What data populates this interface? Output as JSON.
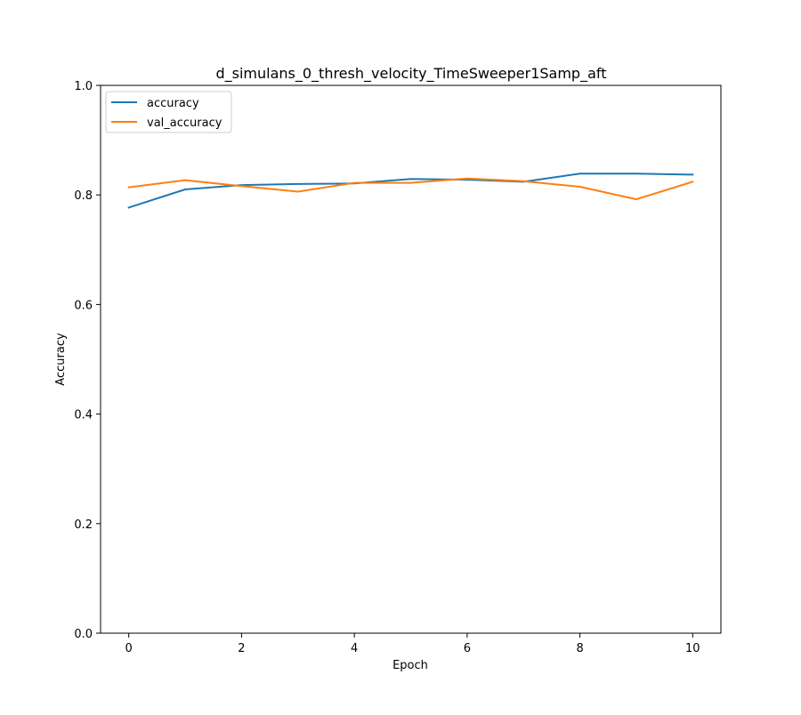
{
  "chart_data": {
    "type": "line",
    "title": "d_simulans_0_thresh_velocity_TimeSweeper1Samp_aft",
    "xlabel": "Epoch",
    "ylabel": "Accuracy",
    "xlim": [
      -0.5,
      10.5
    ],
    "ylim": [
      0.0,
      1.0
    ],
    "x_ticks": [
      0,
      2,
      4,
      6,
      8,
      10
    ],
    "x_tick_labels": [
      "0",
      "2",
      "4",
      "6",
      "8",
      "10"
    ],
    "y_ticks": [
      0.0,
      0.2,
      0.4,
      0.6,
      0.8,
      1.0
    ],
    "y_tick_labels": [
      "0.0",
      "0.2",
      "0.4",
      "0.6",
      "0.8",
      "1.0"
    ],
    "grid": false,
    "legend_position": "top-left",
    "x": [
      0,
      1,
      2,
      3,
      4,
      5,
      6,
      7,
      8,
      9,
      10
    ],
    "series": [
      {
        "name": "accuracy",
        "color": "#1f77b4",
        "values": [
          0.777,
          0.81,
          0.818,
          0.82,
          0.821,
          0.829,
          0.828,
          0.824,
          0.839,
          0.839,
          0.837
        ]
      },
      {
        "name": "val_accuracy",
        "color": "#ff7f0e",
        "values": [
          0.814,
          0.827,
          0.816,
          0.806,
          0.822,
          0.822,
          0.83,
          0.825,
          0.815,
          0.792,
          0.824
        ]
      }
    ]
  }
}
